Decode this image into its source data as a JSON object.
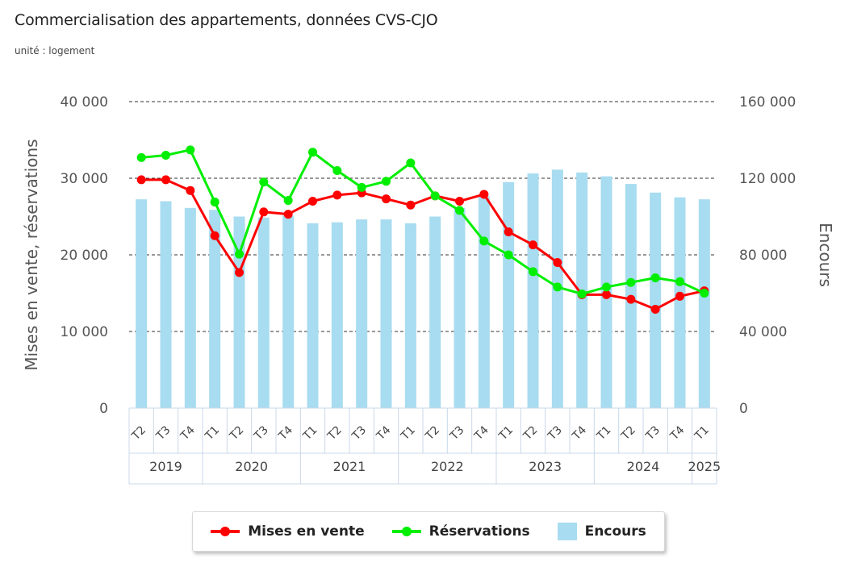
{
  "header": {
    "title": "Commercialisation des appartements, données CVS-CJO",
    "subtitle": "unité : logement"
  },
  "colors": {
    "mises_en_vente": "#ff0000",
    "reservations": "#00ee00",
    "encours": "#a8dcf0"
  },
  "chart_data": {
    "type": "bar+line",
    "y_left": {
      "label": "Mises en vente, réservations",
      "range": [
        0,
        40000
      ],
      "ticks": [
        "0",
        "10 000",
        "20 000",
        "30 000",
        "40 000"
      ]
    },
    "y_right": {
      "label": "Encours",
      "range": [
        0,
        160000
      ],
      "ticks": [
        "0",
        "40 000",
        "80 000",
        "120 000",
        "160 000"
      ]
    },
    "grid": true,
    "legend_position": "bottom",
    "categories": [
      "T2",
      "T3",
      "T4",
      "T1",
      "T2",
      "T3",
      "T4",
      "T1",
      "T2",
      "T3",
      "T4",
      "T1",
      "T2",
      "T3",
      "T4",
      "T1",
      "T2",
      "T3",
      "T4",
      "T1",
      "T2",
      "T3",
      "T4",
      "T1"
    ],
    "years": [
      {
        "label": "2019",
        "count": 3
      },
      {
        "label": "2020",
        "count": 4
      },
      {
        "label": "2021",
        "count": 4
      },
      {
        "label": "2022",
        "count": 4
      },
      {
        "label": "2023",
        "count": 4
      },
      {
        "label": "2024",
        "count": 4
      },
      {
        "label": "2025",
        "count": 1
      }
    ],
    "series": [
      {
        "name": "Encours",
        "kind": "bar",
        "axis": "right",
        "values": [
          109000,
          108000,
          104500,
          103500,
          100000,
          99500,
          100500,
          96500,
          97000,
          98500,
          98500,
          96500,
          100000,
          104500,
          110500,
          118000,
          122500,
          124500,
          123000,
          121000,
          117000,
          112500,
          110000,
          109000
        ]
      },
      {
        "name": "Mises en vente",
        "kind": "line",
        "axis": "left",
        "values": [
          29800,
          29800,
          28400,
          22500,
          17700,
          25600,
          25300,
          27000,
          27800,
          28100,
          27300,
          26500,
          27700,
          27000,
          27900,
          23000,
          21300,
          19000,
          14800,
          14800,
          14200,
          12900,
          14600,
          15300
        ]
      },
      {
        "name": "Réservations",
        "kind": "line",
        "axis": "left",
        "values": [
          32700,
          33000,
          33700,
          26900,
          20100,
          29500,
          27100,
          33400,
          31000,
          28800,
          29600,
          32000,
          27700,
          25800,
          21800,
          20000,
          17800,
          15800,
          14900,
          15800,
          16400,
          17000,
          16500,
          15000
        ]
      }
    ]
  },
  "legend": {
    "items": [
      {
        "label": "Mises en vente"
      },
      {
        "label": "Réservations"
      },
      {
        "label": "Encours"
      }
    ]
  }
}
